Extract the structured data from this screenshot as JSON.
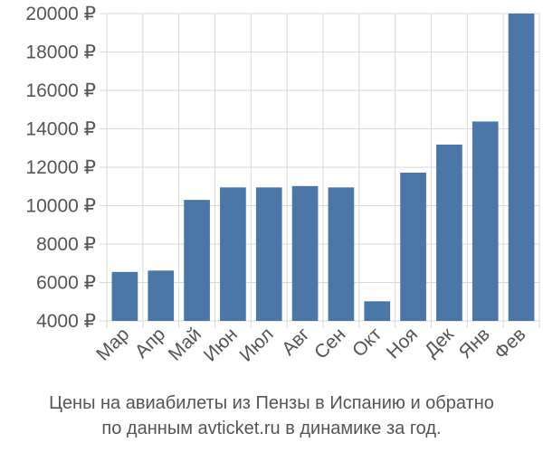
{
  "chart_data": {
    "type": "bar",
    "categories": [
      "Мар",
      "Апр",
      "Май",
      "Июн",
      "Июл",
      "Авг",
      "Сен",
      "Окт",
      "Ноя",
      "Дек",
      "Янв",
      "Фев"
    ],
    "values": [
      6550,
      6620,
      10300,
      10950,
      10950,
      11020,
      10950,
      5020,
      11720,
      13180,
      14380,
      20000
    ],
    "y_ticks": [
      4000,
      6000,
      8000,
      10000,
      12000,
      14000,
      16000,
      18000,
      20000
    ],
    "y_tick_suffix": " ₽",
    "ylim": [
      4000,
      20000
    ],
    "grid": true,
    "colors": {
      "bar": "#4a76a8",
      "grid": "#d9d9d9",
      "text": "#555555"
    }
  },
  "caption": {
    "line1": "Цены на авиабилеты из Пензы в Испанию и обратно",
    "line2": "по данным avticket.ru в динамике за год."
  }
}
